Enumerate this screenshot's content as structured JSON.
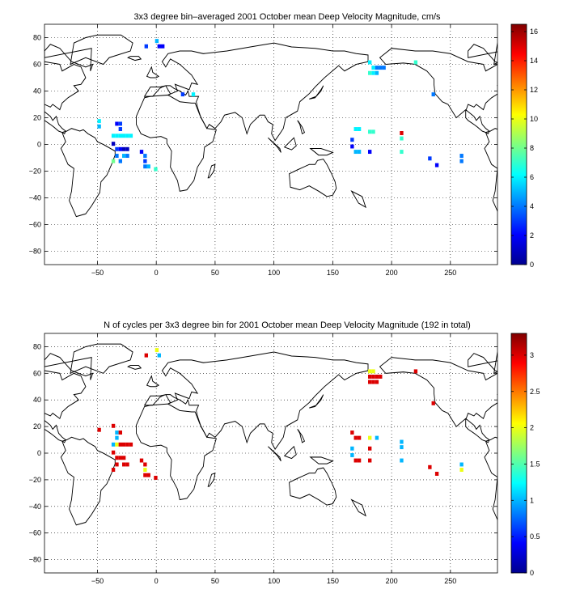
{
  "chart_data": [
    {
      "type": "heatmap",
      "title": "3x3 degree bin–averaged 2001 October mean Deep Velocity Magnitude, cm/s",
      "xlabel": "",
      "ylabel": "",
      "xlim": [
        -95,
        290
      ],
      "ylim": [
        -90,
        90
      ],
      "xticks": [
        -50,
        0,
        50,
        100,
        150,
        200,
        250
      ],
      "yticks": [
        -80,
        -60,
        -40,
        -20,
        0,
        20,
        40,
        60,
        80
      ],
      "grid": "dotted",
      "colorbar": {
        "min": 0,
        "max": 16.5,
        "ticks": [
          0,
          2,
          4,
          6,
          8,
          10,
          12,
          14,
          16
        ]
      },
      "bin_size_deg": 3,
      "cells": [
        [
          -10,
          72,
          3
        ],
        [
          -1,
          76,
          5
        ],
        [
          1,
          72,
          2
        ],
        [
          4,
          72,
          2
        ],
        [
          21,
          36,
          3
        ],
        [
          30,
          36,
          6
        ],
        [
          -50,
          16,
          6
        ],
        [
          -50,
          12,
          5
        ],
        [
          -35,
          14,
          2
        ],
        [
          -32,
          14,
          3
        ],
        [
          -32,
          10,
          3
        ],
        [
          -38,
          5,
          6
        ],
        [
          -35,
          5,
          6
        ],
        [
          -32,
          5,
          6
        ],
        [
          -29,
          5,
          6
        ],
        [
          -26,
          5,
          6
        ],
        [
          -23,
          5,
          6
        ],
        [
          -38,
          -1,
          1
        ],
        [
          -35,
          -5,
          3
        ],
        [
          -32,
          -5,
          2
        ],
        [
          -29,
          -5,
          1
        ],
        [
          -26,
          -5,
          1
        ],
        [
          -35,
          -10,
          4
        ],
        [
          -29,
          -10,
          5
        ],
        [
          -26,
          -10,
          4
        ],
        [
          -32,
          -14,
          4
        ],
        [
          -38,
          -14,
          8
        ],
        [
          -14,
          -7,
          2
        ],
        [
          -11,
          -10,
          4
        ],
        [
          -11,
          -14,
          3
        ],
        [
          -11,
          -18,
          4
        ],
        [
          -8,
          -18,
          5
        ],
        [
          -2,
          -20,
          7
        ],
        [
          180,
          60,
          6
        ],
        [
          183,
          56,
          6
        ],
        [
          186,
          56,
          4
        ],
        [
          189,
          56,
          4
        ],
        [
          192,
          56,
          4
        ],
        [
          180,
          52,
          7
        ],
        [
          183,
          52,
          6
        ],
        [
          186,
          52,
          5
        ],
        [
          219,
          60,
          7
        ],
        [
          234,
          36,
          4
        ],
        [
          168,
          10,
          6
        ],
        [
          171,
          10,
          6
        ],
        [
          180,
          8,
          7
        ],
        [
          183,
          8,
          7
        ],
        [
          165,
          2,
          3
        ],
        [
          165,
          -3,
          2
        ],
        [
          168,
          -7,
          5
        ],
        [
          171,
          -7,
          5
        ],
        [
          180,
          -7,
          2
        ],
        [
          207,
          7,
          15
        ],
        [
          207,
          3,
          7
        ],
        [
          207,
          -7,
          7
        ],
        [
          231,
          -12,
          3
        ],
        [
          237,
          -17,
          2
        ],
        [
          258,
          -10,
          4
        ],
        [
          258,
          -14,
          4
        ]
      ]
    },
    {
      "type": "heatmap",
      "title": "N of cycles per 3x3 degree bin for 2001 October mean Deep Velocity Magnitude (192 in total)",
      "xlabel": "",
      "ylabel": "",
      "xlim": [
        -95,
        290
      ],
      "ylim": [
        -90,
        90
      ],
      "xticks": [
        -50,
        0,
        50,
        100,
        150,
        200,
        250
      ],
      "yticks": [
        -80,
        -60,
        -40,
        -20,
        0,
        20,
        40,
        60,
        80
      ],
      "grid": "dotted",
      "colorbar": {
        "min": 0,
        "max": 3.3,
        "ticks": [
          0,
          0.5,
          1,
          1.5,
          2,
          2.5,
          3
        ]
      },
      "bin_size_deg": 3,
      "cells": [
        [
          -10,
          72,
          3
        ],
        [
          -1,
          76,
          2
        ],
        [
          1,
          72,
          1
        ],
        [
          -50,
          16,
          3
        ],
        [
          -38,
          19,
          3
        ],
        [
          -35,
          14,
          1
        ],
        [
          -32,
          14,
          3
        ],
        [
          -38,
          5,
          1
        ],
        [
          -35,
          5,
          2
        ],
        [
          -32,
          5,
          3
        ],
        [
          -29,
          5,
          3
        ],
        [
          -26,
          5,
          3
        ],
        [
          -23,
          5,
          3
        ],
        [
          -35,
          10,
          1
        ],
        [
          -38,
          -1,
          3
        ],
        [
          -35,
          -5,
          3
        ],
        [
          -32,
          -5,
          3
        ],
        [
          -29,
          -5,
          3
        ],
        [
          -35,
          -10,
          3
        ],
        [
          -29,
          -10,
          3
        ],
        [
          -26,
          -10,
          3
        ],
        [
          -38,
          -14,
          3
        ],
        [
          -14,
          -7,
          3
        ],
        [
          -11,
          -10,
          3
        ],
        [
          -11,
          -14,
          2
        ],
        [
          -11,
          -18,
          3
        ],
        [
          -8,
          -18,
          3
        ],
        [
          -2,
          -20,
          3
        ],
        [
          180,
          60,
          2
        ],
        [
          183,
          60,
          2
        ],
        [
          180,
          56,
          3
        ],
        [
          183,
          56,
          3
        ],
        [
          186,
          56,
          3
        ],
        [
          189,
          56,
          3
        ],
        [
          180,
          52,
          3
        ],
        [
          183,
          52,
          3
        ],
        [
          186,
          52,
          3
        ],
        [
          219,
          60,
          3
        ],
        [
          234,
          36,
          3
        ],
        [
          165,
          14,
          3
        ],
        [
          168,
          10,
          3
        ],
        [
          171,
          10,
          3
        ],
        [
          180,
          10,
          2
        ],
        [
          186,
          10,
          1
        ],
        [
          165,
          2,
          1
        ],
        [
          165,
          -3,
          1
        ],
        [
          168,
          -7,
          3
        ],
        [
          171,
          -7,
          3
        ],
        [
          180,
          -7,
          3
        ],
        [
          207,
          7,
          1
        ],
        [
          207,
          3,
          1
        ],
        [
          207,
          -7,
          1
        ],
        [
          180,
          2,
          3
        ],
        [
          231,
          -12,
          3
        ],
        [
          237,
          -17,
          3
        ],
        [
          258,
          -10,
          1
        ],
        [
          258,
          -14,
          2
        ]
      ]
    }
  ]
}
